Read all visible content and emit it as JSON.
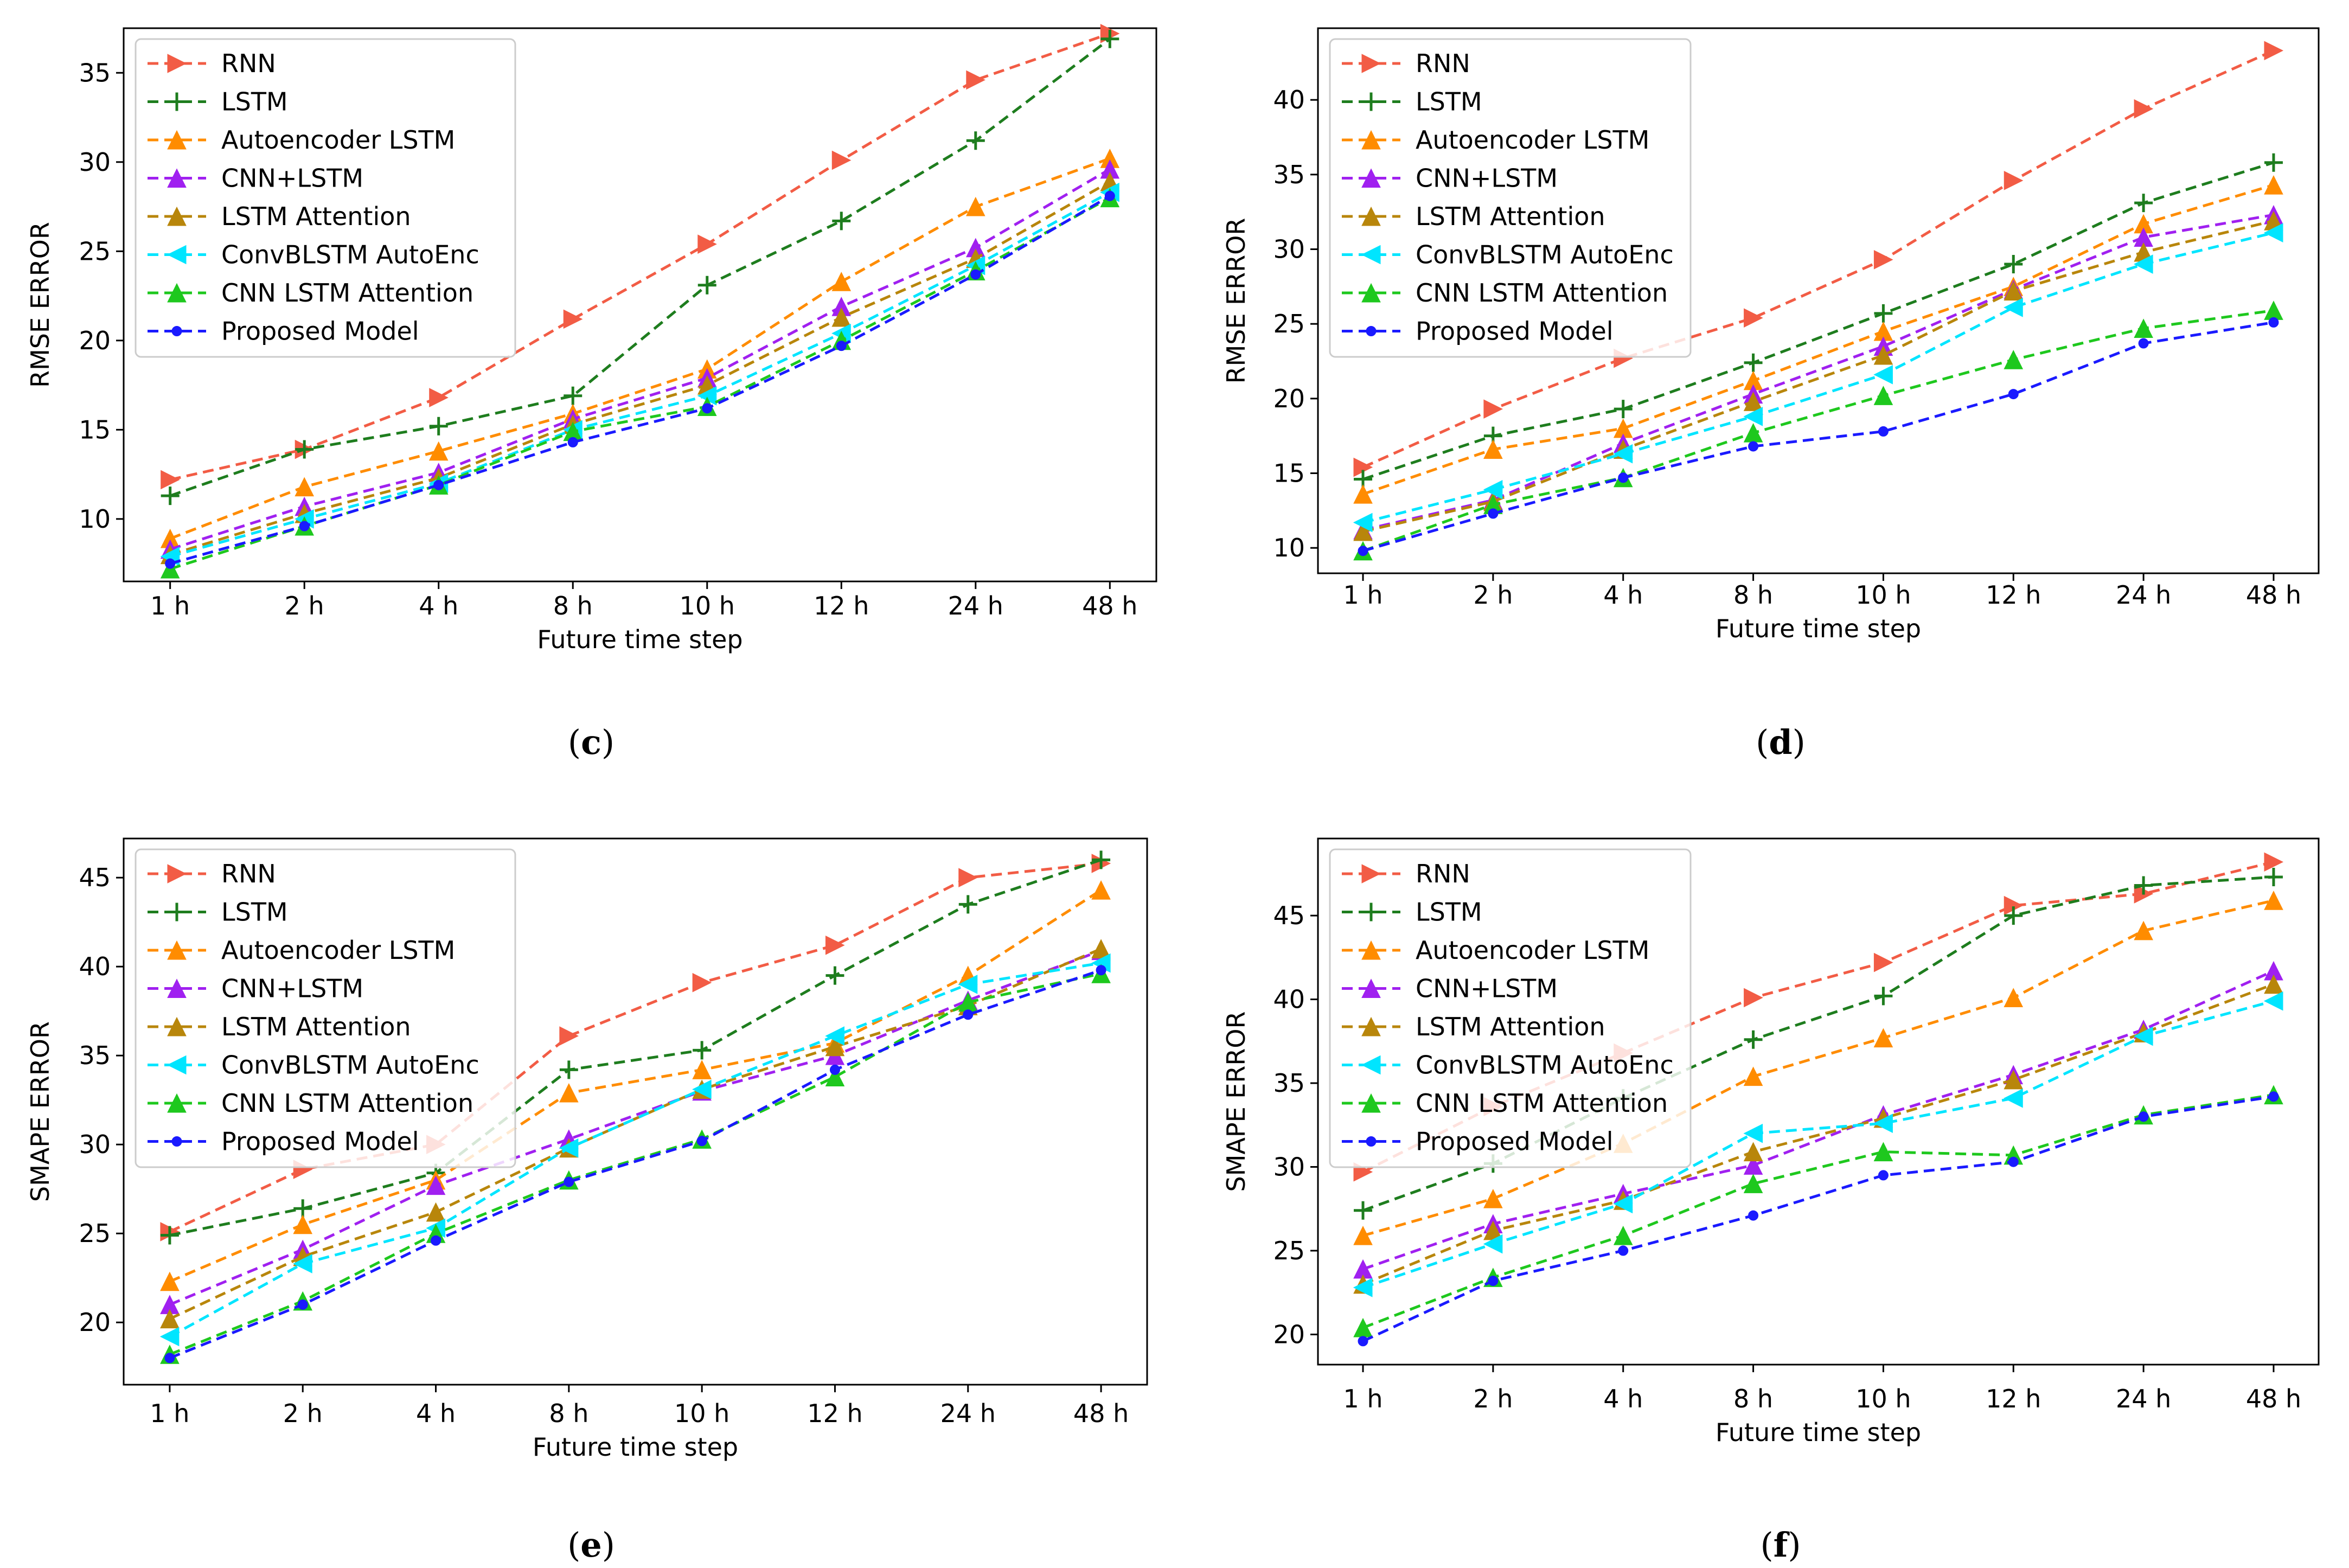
{
  "chart_data": [
    {
      "panel": "c",
      "type": "line",
      "categories": [
        "1 h",
        "2 h",
        "4 h",
        "8 h",
        "10 h",
        "12 h",
        "24 h",
        "48 h"
      ],
      "xlabel": "Future time step",
      "ylabel": "RMSE ERROR",
      "ylim": [
        6.5,
        37.5
      ],
      "yticks": [
        10,
        15,
        20,
        25,
        30,
        35
      ],
      "legend_position": "top-left",
      "caption": {
        "open": "(",
        "letter": "c",
        "close": ")"
      },
      "series": [
        {
          "name": "RNN",
          "values": [
            12.2,
            13.9,
            16.8,
            21.2,
            25.4,
            30.1,
            34.6,
            37.2
          ]
        },
        {
          "name": "LSTM",
          "values": [
            11.3,
            13.9,
            15.2,
            16.9,
            23.1,
            26.7,
            31.2,
            36.9
          ]
        },
        {
          "name": "Autoencoder LSTM",
          "values": [
            8.9,
            11.8,
            13.8,
            15.9,
            18.4,
            23.3,
            27.5,
            30.2
          ]
        },
        {
          "name": "CNN+LSTM",
          "values": [
            8.3,
            10.7,
            12.6,
            15.6,
            17.9,
            21.9,
            25.2,
            29.6
          ]
        },
        {
          "name": "LSTM Attention",
          "values": [
            8.0,
            10.3,
            12.3,
            15.3,
            17.5,
            21.3,
            24.6,
            28.9
          ]
        },
        {
          "name": "ConvBLSTM AutoEnc",
          "values": [
            7.9,
            10.0,
            12.0,
            15.0,
            16.9,
            20.4,
            24.2,
            28.3
          ]
        },
        {
          "name": "CNN LSTM Attention",
          "values": [
            7.2,
            9.6,
            11.9,
            14.9,
            16.3,
            20.0,
            23.9,
            28.0
          ]
        },
        {
          "name": "Proposed Model",
          "values": [
            7.5,
            9.6,
            11.9,
            14.3,
            16.2,
            19.7,
            23.7,
            28.1
          ]
        }
      ]
    },
    {
      "panel": "d",
      "type": "line",
      "categories": [
        "1 h",
        "2 h",
        "4 h",
        "8 h",
        "10 h",
        "12 h",
        "24 h",
        "48 h"
      ],
      "xlabel": "Future time step",
      "ylabel": "RMSE ERROR",
      "ylim": [
        8.3,
        44.8
      ],
      "yticks": [
        10,
        15,
        20,
        25,
        30,
        35,
        40
      ],
      "legend_position": "top-left",
      "caption": {
        "open": "(",
        "letter": "d",
        "close": ")"
      },
      "series": [
        {
          "name": "RNN",
          "values": [
            15.4,
            19.3,
            22.7,
            25.4,
            29.3,
            34.6,
            39.4,
            43.3
          ]
        },
        {
          "name": "LSTM",
          "values": [
            14.6,
            17.5,
            19.3,
            22.4,
            25.7,
            29.0,
            33.1,
            35.8
          ]
        },
        {
          "name": "Autoencoder LSTM",
          "values": [
            13.6,
            16.6,
            18.0,
            21.2,
            24.5,
            27.5,
            31.7,
            34.3
          ]
        },
        {
          "name": "CNN+LSTM",
          "values": [
            11.2,
            13.2,
            17.0,
            20.3,
            23.5,
            27.3,
            30.8,
            32.3
          ]
        },
        {
          "name": "LSTM Attention",
          "values": [
            11.1,
            13.1,
            16.6,
            19.8,
            22.9,
            27.2,
            29.8,
            31.9
          ]
        },
        {
          "name": "ConvBLSTM AutoEnc",
          "values": [
            11.7,
            13.9,
            16.3,
            18.8,
            21.6,
            26.1,
            29.0,
            31.1
          ]
        },
        {
          "name": "CNN LSTM Attention",
          "values": [
            9.8,
            12.9,
            14.7,
            17.7,
            20.2,
            22.6,
            24.7,
            25.9
          ]
        },
        {
          "name": "Proposed Model",
          "values": [
            9.8,
            12.3,
            14.7,
            16.8,
            17.8,
            20.3,
            23.7,
            25.1
          ]
        }
      ]
    },
    {
      "panel": "e",
      "type": "line",
      "categories": [
        "1 h",
        "2 h",
        "4 h",
        "8 h",
        "10 h",
        "12 h",
        "24 h",
        "48 h"
      ],
      "xlabel": "Future time step",
      "ylabel": "SMAPE ERROR",
      "ylim": [
        16.5,
        47.2
      ],
      "yticks": [
        20,
        25,
        30,
        35,
        40,
        45
      ],
      "legend_position": "top-left",
      "caption": {
        "open": "(",
        "letter": "e",
        "close": ")"
      },
      "series": [
        {
          "name": "RNN",
          "values": [
            25.1,
            28.6,
            30.0,
            36.1,
            39.1,
            41.2,
            45.0,
            45.8
          ]
        },
        {
          "name": "LSTM",
          "values": [
            24.9,
            26.4,
            28.4,
            34.2,
            35.3,
            39.5,
            43.5,
            46.0
          ]
        },
        {
          "name": "Autoencoder LSTM",
          "values": [
            22.3,
            25.5,
            28.0,
            32.9,
            34.2,
            35.7,
            39.5,
            44.3
          ]
        },
        {
          "name": "CNN+LSTM",
          "values": [
            21.0,
            24.1,
            27.7,
            30.3,
            33.0,
            35.0,
            38.1,
            40.9
          ]
        },
        {
          "name": "LSTM Attention",
          "values": [
            20.2,
            23.7,
            26.2,
            29.8,
            33.1,
            35.5,
            37.8,
            41.0
          ]
        },
        {
          "name": "ConvBLSTM AutoEnc",
          "values": [
            19.2,
            23.3,
            25.3,
            29.8,
            33.1,
            36.1,
            39.0,
            40.2
          ]
        },
        {
          "name": "CNN LSTM Attention",
          "values": [
            18.2,
            21.2,
            25.0,
            28.0,
            30.3,
            33.8,
            38.0,
            39.6
          ]
        },
        {
          "name": "Proposed Model",
          "values": [
            18.0,
            21.0,
            24.6,
            27.9,
            30.2,
            34.2,
            37.3,
            39.8
          ]
        }
      ]
    },
    {
      "panel": "f",
      "type": "line",
      "categories": [
        "1 h",
        "2 h",
        "4 h",
        "8 h",
        "10 h",
        "12 h",
        "24 h",
        "48 h"
      ],
      "xlabel": "Future time step",
      "ylabel": "SMAPE ERROR",
      "ylim": [
        18.2,
        49.6
      ],
      "yticks": [
        20,
        25,
        30,
        35,
        40,
        45
      ],
      "legend_position": "top-left",
      "caption": {
        "open": "(",
        "letter": "f",
        "close": ")"
      },
      "series": [
        {
          "name": "RNN",
          "values": [
            29.7,
            33.6,
            36.8,
            40.1,
            42.2,
            45.6,
            46.3,
            48.2
          ]
        },
        {
          "name": "LSTM",
          "values": [
            27.4,
            30.2,
            34.1,
            37.6,
            40.2,
            45.0,
            46.8,
            47.3
          ]
        },
        {
          "name": "Autoencoder LSTM",
          "values": [
            25.9,
            28.1,
            31.4,
            35.4,
            37.7,
            40.1,
            44.1,
            45.9
          ]
        },
        {
          "name": "CNN+LSTM",
          "values": [
            23.9,
            26.6,
            28.4,
            30.1,
            33.1,
            35.5,
            38.2,
            41.7
          ]
        },
        {
          "name": "LSTM Attention",
          "values": [
            23.0,
            26.2,
            28.0,
            30.9,
            32.9,
            35.2,
            38.0,
            40.9
          ]
        },
        {
          "name": "ConvBLSTM AutoEnc",
          "values": [
            22.8,
            25.4,
            27.8,
            32.0,
            32.6,
            34.1,
            37.8,
            39.9
          ]
        },
        {
          "name": "CNN LSTM Attention",
          "values": [
            20.4,
            23.4,
            25.9,
            29.0,
            30.9,
            30.7,
            33.1,
            34.3
          ]
        },
        {
          "name": "Proposed Model",
          "values": [
            19.6,
            23.2,
            25.0,
            27.1,
            29.5,
            30.3,
            33.0,
            34.2
          ]
        }
      ]
    }
  ],
  "series_styles": [
    {
      "name": "RNN",
      "color": "#f25c45",
      "marker": "triangle-right"
    },
    {
      "name": "LSTM",
      "color": "#1e7d1e",
      "marker": "plus"
    },
    {
      "name": "Autoencoder LSTM",
      "color": "#ff8c00",
      "marker": "triangle-up"
    },
    {
      "name": "CNN+LSTM",
      "color": "#a020f0",
      "marker": "triangle-up"
    },
    {
      "name": "LSTM Attention",
      "color": "#b8860b",
      "marker": "triangle-up"
    },
    {
      "name": "ConvBLSTM AutoEnc",
      "color": "#00e5ff",
      "marker": "triangle-left"
    },
    {
      "name": "CNN LSTM Attention",
      "color": "#1ec81e",
      "marker": "triangle-up"
    },
    {
      "name": "Proposed Model",
      "color": "#1a1aff",
      "marker": "circle"
    }
  ]
}
